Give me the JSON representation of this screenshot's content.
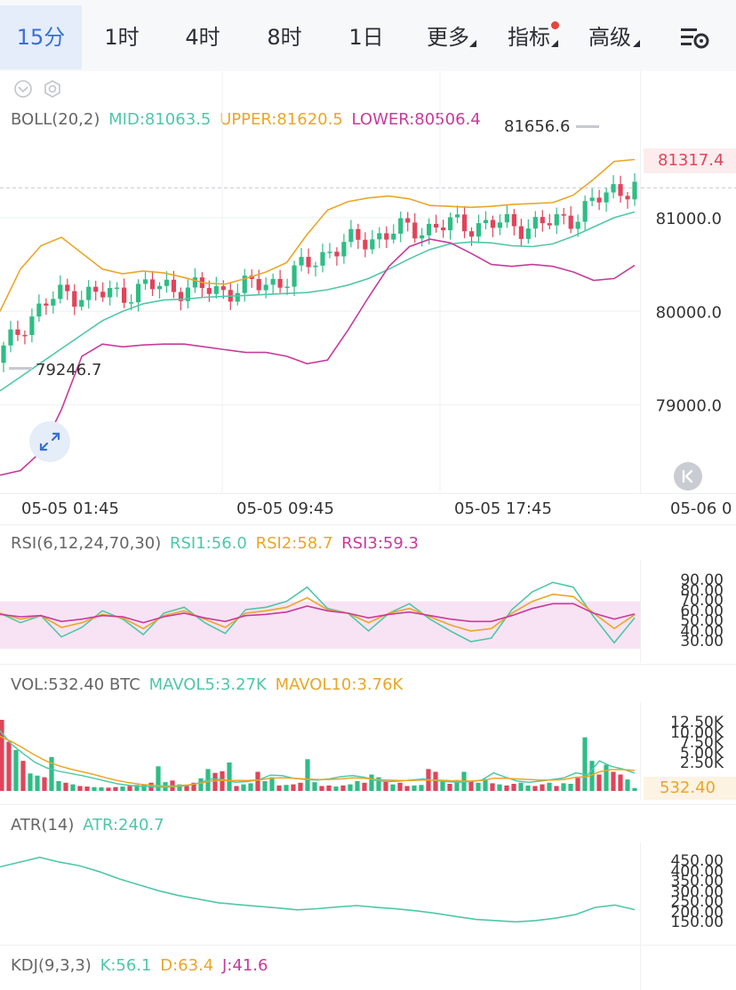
{
  "tabs": [
    {
      "label": "15分",
      "active": true
    },
    {
      "label": "1时"
    },
    {
      "label": "4时"
    },
    {
      "label": "8时"
    },
    {
      "label": "1日"
    },
    {
      "label": "更多"
    },
    {
      "label": "指标"
    },
    {
      "label": "高级"
    }
  ],
  "colors": {
    "up": "#2ebd85",
    "down": "#e0445a",
    "mid": "#4fc7a8",
    "upper": "#eaa627",
    "lower": "#c73b9b",
    "accent": "#3b6fd4",
    "grid": "#eef0f3"
  },
  "boll": {
    "name": "BOLL(20,2)",
    "mid": "MID:81063.5",
    "upper": "UPPER:81620.5",
    "lower": "LOWER:80506.4",
    "high_label": "81656.6",
    "low_label": "79246.7",
    "last_price": "81317.4"
  },
  "rsi": {
    "name": "RSI(6,12,24,70,30)",
    "rsi1": "RSI1:56.0",
    "rsi2": "RSI2:58.7",
    "rsi3": "RSI3:59.3"
  },
  "vol": {
    "name": "VOL:532.40 BTC",
    "mavol5": "MAVOL5:3.27K",
    "mavol10": "MAVOL10:3.76K",
    "last": "532.40"
  },
  "atr": {
    "name": "ATR(14)",
    "atr": "ATR:240.7"
  },
  "kdj": {
    "name": "KDJ(9,3,3)",
    "k": "K:56.1",
    "d": "D:63.4",
    "j": "J:41.6"
  },
  "chart_data": [
    {
      "type": "candlestick",
      "title": "BOLL(20,2)",
      "x_ticks": [
        "05-05 01:45",
        "05-05 09:45",
        "05-05 17:45",
        "05-06 0"
      ],
      "y_ticks": [
        "81000.0",
        "80000.0",
        "79000.0"
      ],
      "ylim": [
        78200,
        81900
      ],
      "series": [
        {
          "name": "MID",
          "values": [
            79150,
            79300,
            79450,
            79600,
            79750,
            79900,
            80000,
            80080,
            80120,
            80130,
            80150,
            80160,
            80170,
            80180,
            80190,
            80200,
            80230,
            80280,
            80350,
            80450,
            80560,
            80660,
            80720,
            80740,
            80730,
            80700,
            80690,
            80720,
            80800,
            80900,
            81000,
            81060
          ]
        },
        {
          "name": "UPPER",
          "values": [
            80000,
            80450,
            80700,
            80790,
            80620,
            80450,
            80400,
            80430,
            80410,
            80360,
            80300,
            80290,
            80350,
            80420,
            80520,
            80820,
            81080,
            81170,
            81210,
            81230,
            81200,
            81130,
            81120,
            81110,
            81120,
            81140,
            81150,
            81160,
            81240,
            81410,
            81600,
            81620
          ]
        },
        {
          "name": "LOWER",
          "values": [
            78250,
            78300,
            78500,
            78950,
            79520,
            79650,
            79620,
            79640,
            79650,
            79650,
            79620,
            79590,
            79560,
            79560,
            79520,
            79440,
            79480,
            79800,
            80150,
            80480,
            80690,
            80770,
            80730,
            80620,
            80500,
            80480,
            80500,
            80480,
            80420,
            80330,
            80350,
            80490
          ]
        }
      ],
      "candles_last": {
        "open": 81200,
        "close": 81317.4
      },
      "annotations": [
        "81656.6",
        "79246.7",
        "81317.4"
      ]
    },
    {
      "type": "line",
      "title": "RSI(6,12,24,70,30)",
      "y_ticks": [
        "90.00",
        "80.00",
        "70.00",
        "60.00",
        "50.00",
        "40.00",
        "30.00"
      ],
      "ylim": [
        30,
        90
      ],
      "series": [
        {
          "name": "RSI1",
          "values": [
            60,
            52,
            58,
            40,
            48,
            62,
            55,
            42,
            60,
            65,
            52,
            43,
            63,
            65,
            70,
            82,
            64,
            60,
            45,
            60,
            68,
            55,
            45,
            36,
            39,
            63,
            78,
            86,
            82,
            57,
            35,
            56
          ]
        },
        {
          "name": "RSI2",
          "values": [
            60,
            55,
            58,
            48,
            52,
            59,
            56,
            47,
            58,
            62,
            55,
            48,
            60,
            62,
            65,
            73,
            63,
            60,
            52,
            60,
            64,
            57,
            50,
            45,
            47,
            60,
            70,
            76,
            74,
            60,
            47,
            58.7
          ]
        },
        {
          "name": "RSI3",
          "values": [
            59,
            57,
            58,
            53,
            55,
            58,
            57,
            52,
            57,
            60,
            56,
            53,
            58,
            59,
            61,
            66,
            62,
            60,
            56,
            59,
            61,
            58,
            55,
            53,
            53,
            58,
            64,
            68,
            68,
            60,
            55,
            59.3
          ]
        }
      ]
    },
    {
      "type": "bar",
      "title": "VOL",
      "y_ticks": [
        "12.50K",
        "10.00K",
        "7.50K",
        "5.00K",
        "2.50K"
      ],
      "ylim": [
        0,
        13000
      ],
      "values": [
        14000,
        9000,
        7500,
        5500,
        3200,
        2800,
        2500,
        6200,
        1800,
        1500,
        1200,
        900,
        800,
        700,
        650,
        600,
        700,
        800,
        900,
        1100,
        1200,
        1500,
        4500,
        1600,
        1900,
        1200,
        1100,
        1500,
        2300,
        4000,
        3300,
        3600,
        5200,
        900,
        1200,
        1400,
        3500,
        1800,
        2500,
        1000,
        1100,
        1200,
        1500,
        5800,
        1600,
        900,
        1000,
        800,
        1000,
        1200,
        1800,
        1500,
        3000,
        2500,
        1800,
        1200,
        1500,
        900,
        1000,
        1100,
        4000,
        3500,
        1800,
        1300,
        2000,
        3500,
        1800,
        1500,
        2200,
        1400,
        1200,
        1000,
        1300,
        1500,
        1000,
        900,
        1200,
        1500,
        900,
        1400,
        1300,
        2400,
        9800,
        5500,
        3000,
        4800,
        3500,
        3000,
        2100,
        532
      ],
      "series": [
        {
          "name": "MAVOL5",
          "values": [
            11000,
            8500,
            6800,
            5200,
            4200,
            3600,
            3200,
            2800,
            2300,
            1800,
            1300,
            1000,
            850,
            750,
            700,
            800,
            1000,
            1500,
            2200,
            2100,
            1600,
            1700,
            2000,
            2900,
            2800,
            2300,
            2100,
            2000,
            2200,
            2600,
            2800,
            2500,
            1900,
            1700,
            1800,
            2000,
            2200,
            1900,
            1700,
            1600,
            1700,
            2000,
            3300,
            2500,
            1800,
            1600,
            1800,
            2100,
            2400,
            3300,
            2900,
            5500,
            4500,
            4000,
            3270
          ]
        },
        {
          "name": "MAVOL10",
          "values": [
            10000,
            9000,
            7800,
            6500,
            5400,
            4600,
            4000,
            3500,
            3000,
            2400,
            1900,
            1500,
            1200,
            1000,
            900,
            950,
            1100,
            1400,
            1800,
            1900,
            1900,
            1900,
            2000,
            2300,
            2400,
            2300,
            2200,
            2100,
            2100,
            2200,
            2400,
            2300,
            2100,
            2000,
            1900,
            1900,
            2000,
            2000,
            1900,
            1800,
            1800,
            1900,
            2300,
            2300,
            2200,
            2100,
            2000,
            2000,
            2100,
            2500,
            2600,
            3500,
            3900,
            3900,
            3760
          ]
        }
      ]
    },
    {
      "type": "line",
      "title": "ATR(14)",
      "y_ticks": [
        "450.00",
        "400.00",
        "350.00",
        "300.00",
        "250.00",
        "200.00",
        "150.00"
      ],
      "ylim": [
        150,
        470
      ],
      "series": [
        {
          "name": "ATR",
          "values": [
            420,
            440,
            460,
            440,
            425,
            400,
            370,
            345,
            320,
            300,
            285,
            270,
            262,
            255,
            248,
            240,
            245,
            252,
            258,
            250,
            244,
            236,
            225,
            212,
            200,
            195,
            190,
            195,
            205,
            220,
            250,
            260,
            240.7
          ]
        }
      ]
    }
  ]
}
